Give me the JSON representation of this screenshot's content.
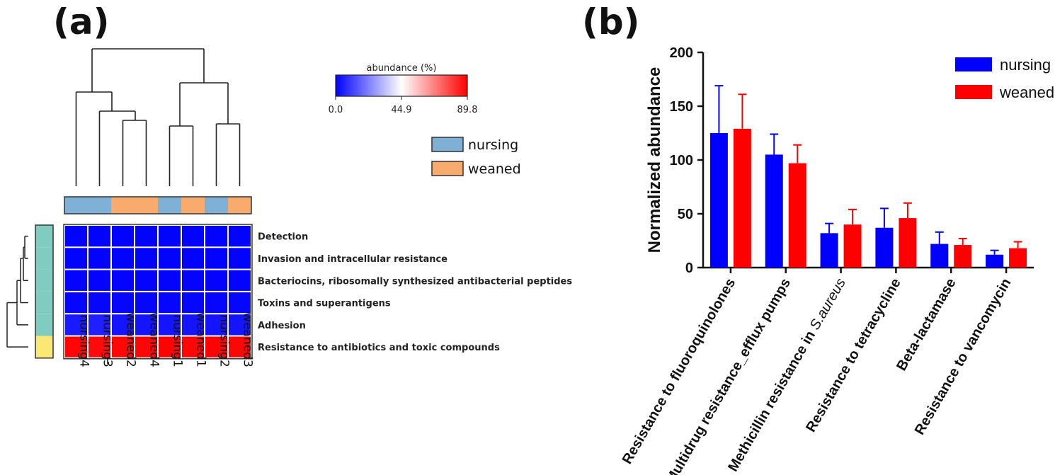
{
  "panels": {
    "a": "(a)",
    "b": "(b)"
  },
  "chart_data": [
    {
      "type": "heatmap",
      "columns": [
        "nursing4",
        "nursing3",
        "weaned2",
        "weaned4",
        "nursing1",
        "weaned1",
        "nursing2",
        "weaned3"
      ],
      "column_groups": [
        "nursing",
        "nursing",
        "weaned",
        "weaned",
        "nursing",
        "weaned",
        "nursing",
        "weaned"
      ],
      "rows": [
        "Detection",
        "Invasion and intracellular resistance",
        "Bacteriocins, ribosomally synthesized antibacterial peptides",
        "Toxins and superantigens",
        "Adhesion",
        "Resistance to antibiotics and toxic compounds"
      ],
      "row_clusters": [
        "teal",
        "teal",
        "teal",
        "teal",
        "teal",
        "yellow"
      ],
      "values": [
        [
          0.3,
          0.3,
          0.3,
          0.3,
          0.3,
          0.3,
          0.3,
          0.3
        ],
        [
          0.4,
          0.4,
          0.4,
          0.4,
          0.4,
          0.4,
          0.4,
          0.4
        ],
        [
          0.6,
          0.6,
          0.6,
          0.6,
          0.6,
          0.6,
          0.6,
          0.6
        ],
        [
          1.0,
          1.0,
          1.0,
          1.0,
          1.0,
          1.0,
          1.0,
          1.0
        ],
        [
          4.5,
          5.5,
          3.5,
          3.5,
          3.5,
          3.5,
          3.5,
          3.5
        ],
        [
          89.0,
          88.0,
          88.5,
          89.0,
          89.5,
          89.0,
          89.5,
          89.0
        ]
      ],
      "colorbar": {
        "title": "abundance (%)",
        "min": 0.0,
        "mid": 44.9,
        "max": 89.8,
        "tick_labels": [
          "0.0",
          "44.9",
          "89.8"
        ],
        "colors": [
          "#0000ff",
          "#ffffff",
          "#ff0000"
        ]
      },
      "legend": [
        {
          "label": "nursing",
          "color": "#7fb0d6"
        },
        {
          "label": "weaned",
          "color": "#f8ab6d"
        }
      ],
      "cluster_colors": {
        "teal": "#7fcdc1",
        "yellow": "#fbe774"
      }
    },
    {
      "type": "bar",
      "categories": [
        "Resistance to fluoroquinolones",
        "Multidrug resistance_efflux pumps",
        "Methicillin resistance in ",
        "Resistance to tetracycline",
        "Beta-lactamase",
        "Resistance to vancomycin"
      ],
      "category_italic_suffix": [
        "",
        "",
        "S.aureus",
        "",
        "",
        ""
      ],
      "series": [
        {
          "name": "nursing",
          "color": "#0000ff",
          "values": [
            125,
            105,
            32,
            37,
            22,
            12
          ],
          "errors": [
            44,
            19,
            9,
            18,
            11,
            4
          ]
        },
        {
          "name": "weaned",
          "color": "#ff0000",
          "values": [
            129,
            97,
            40,
            46,
            21,
            18
          ],
          "errors": [
            32,
            17,
            14,
            14,
            6,
            6
          ]
        }
      ],
      "ylabel": "Normalized abundance",
      "xlabel": "",
      "ylim": [
        0,
        200
      ],
      "yticks": [
        0,
        50,
        100,
        150,
        200
      ],
      "legend_position": "top-right",
      "grid": false
    }
  ]
}
